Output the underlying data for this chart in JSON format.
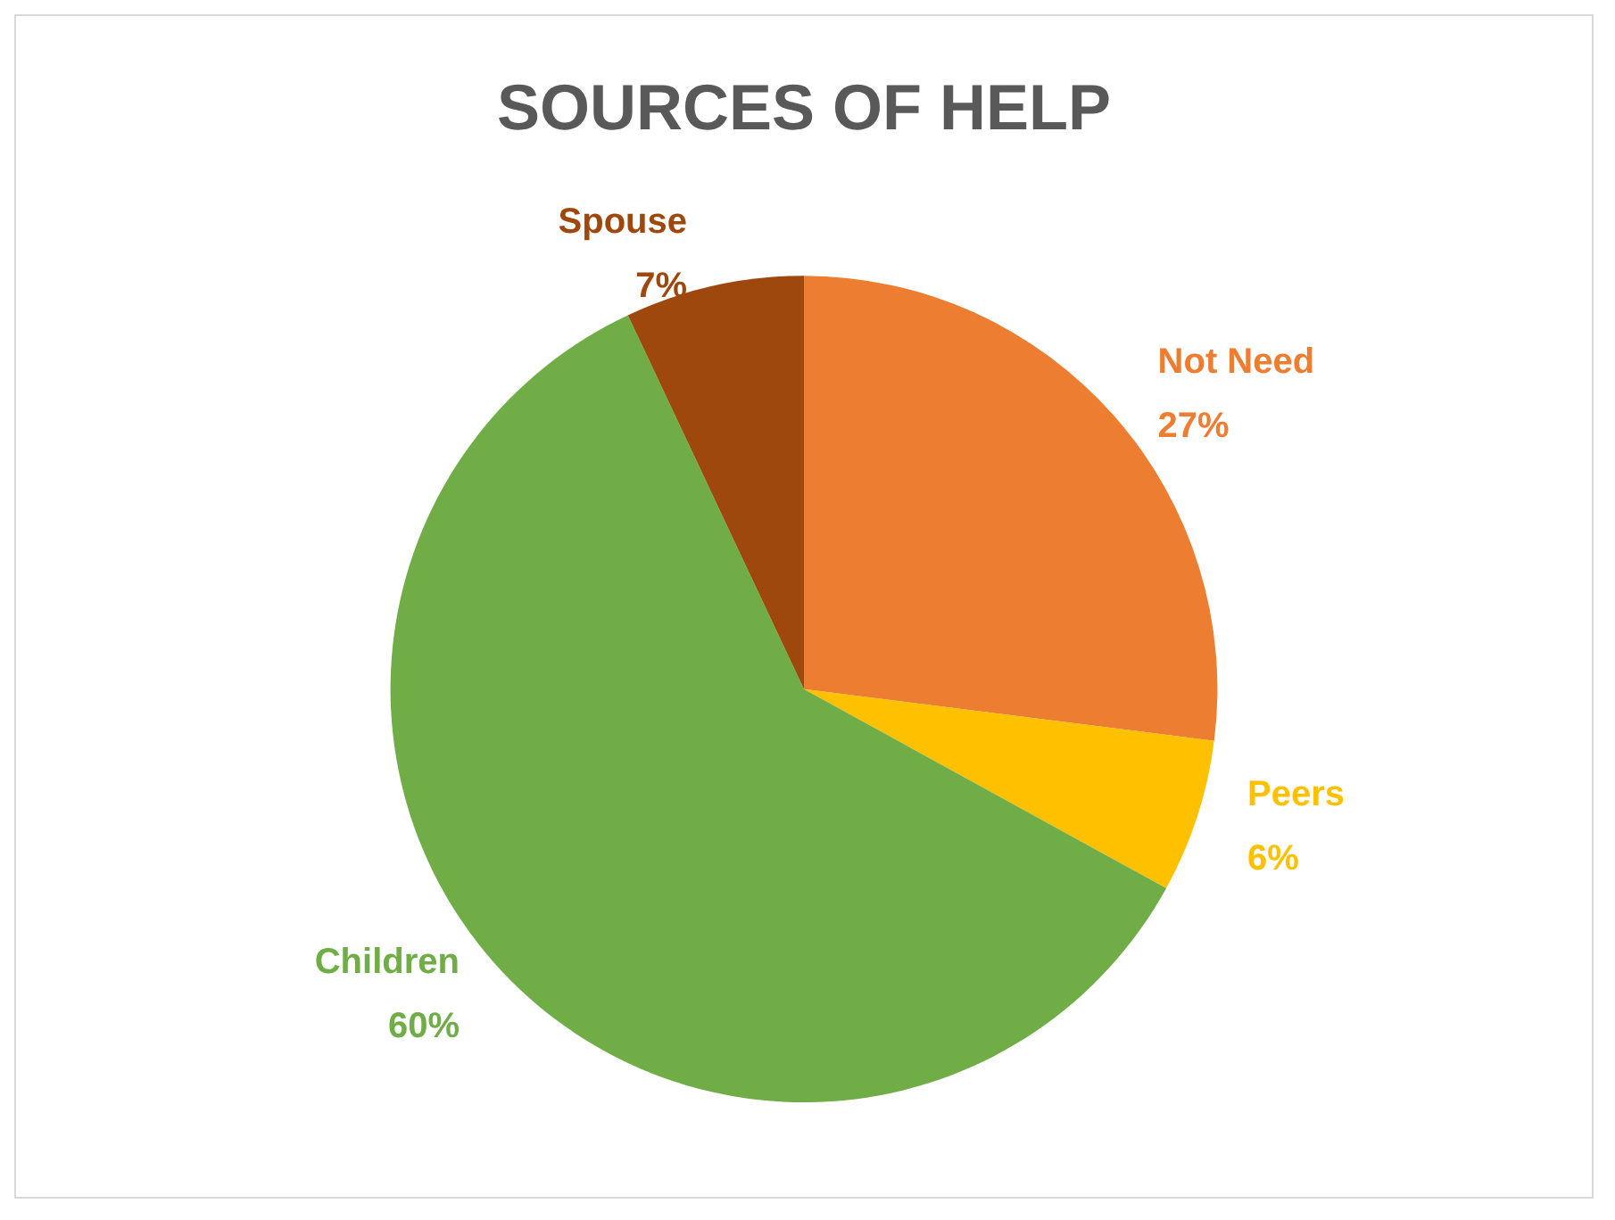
{
  "chart_data": {
    "type": "pie",
    "title": "SOURCES OF HELP",
    "categories": [
      "Not Need",
      "Peers",
      "Children",
      "Spouse"
    ],
    "values": [
      27,
      6,
      60,
      7
    ],
    "colors": [
      "#ed7d31",
      "#ffc000",
      "#70ad47",
      "#9e480e"
    ],
    "value_labels": [
      "27%",
      "6%",
      "60%",
      "7%"
    ]
  }
}
